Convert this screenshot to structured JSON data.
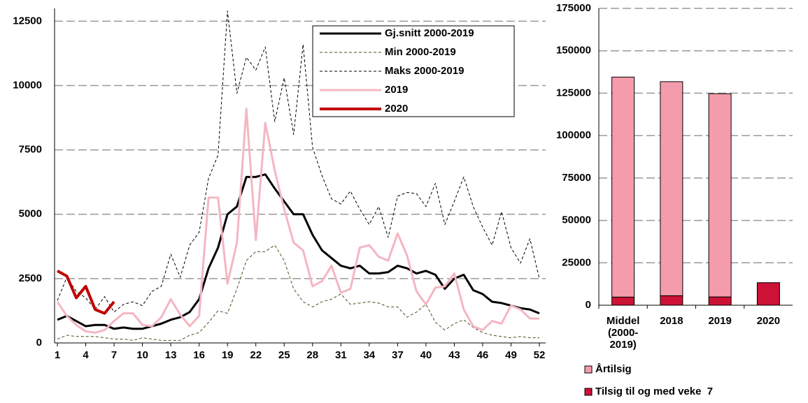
{
  "chart_data": [
    {
      "type": "line",
      "x": [
        1,
        2,
        3,
        4,
        5,
        6,
        7,
        8,
        9,
        10,
        11,
        12,
        13,
        14,
        15,
        16,
        17,
        18,
        19,
        20,
        21,
        22,
        23,
        24,
        25,
        26,
        27,
        28,
        29,
        30,
        31,
        32,
        33,
        34,
        35,
        36,
        37,
        38,
        39,
        40,
        41,
        42,
        43,
        44,
        45,
        46,
        47,
        48,
        49,
        50,
        51,
        52
      ],
      "xlim": [
        1,
        52
      ],
      "xticks": [
        1,
        4,
        7,
        10,
        13,
        16,
        19,
        22,
        25,
        28,
        31,
        34,
        37,
        40,
        43,
        46,
        49,
        52
      ],
      "ylim": [
        0,
        13000
      ],
      "yticks": [
        0,
        2500,
        5000,
        7500,
        10000,
        12500
      ],
      "grid": true,
      "legend": "upper right",
      "series": [
        {
          "name": "Gj.snitt 2000-2019",
          "color": "#000000",
          "line_width": 3,
          "dash": false,
          "values": [
            900,
            1050,
            850,
            650,
            700,
            700,
            550,
            600,
            550,
            550,
            650,
            750,
            900,
            1000,
            1200,
            1700,
            2900,
            3700,
            5000,
            5300,
            6450,
            6450,
            6550,
            6000,
            5500,
            5000,
            5000,
            4200,
            3600,
            3300,
            3000,
            2900,
            3000,
            2700,
            2700,
            2750,
            3000,
            2900,
            2700,
            2800,
            2650,
            2100,
            2500,
            2650,
            2050,
            1900,
            1600,
            1550,
            1450,
            1350,
            1300,
            1150
          ]
        },
        {
          "name": "Min 2000-2019",
          "color": "#4d4d1a",
          "line_width": 1,
          "dash": true,
          "values": [
            150,
            300,
            250,
            250,
            250,
            200,
            150,
            150,
            100,
            200,
            150,
            100,
            100,
            100,
            300,
            400,
            800,
            1250,
            1150,
            2100,
            3200,
            3550,
            3550,
            3800,
            3200,
            2100,
            1600,
            1400,
            1600,
            1700,
            1900,
            1500,
            1550,
            1600,
            1550,
            1400,
            1400,
            1000,
            1200,
            1500,
            800,
            500,
            750,
            900,
            600,
            400,
            300,
            250,
            200,
            250,
            200,
            200
          ]
        },
        {
          "name": "Maks 2000-2019",
          "color": "#000000",
          "line_width": 1,
          "dash": true,
          "values": [
            1650,
            2550,
            2000,
            1750,
            1300,
            1800,
            1200,
            1500,
            1600,
            1450,
            2000,
            2200,
            3450,
            2550,
            3800,
            4300,
            6400,
            7300,
            12900,
            9700,
            11100,
            10600,
            11500,
            8600,
            10300,
            8100,
            11600,
            7600,
            6500,
            5600,
            5400,
            5900,
            5200,
            4600,
            5300,
            4100,
            5700,
            5850,
            5800,
            5300,
            6200,
            4600,
            5500,
            6450,
            5300,
            4500,
            3800,
            5100,
            3700,
            3100,
            4050,
            2500
          ]
        },
        {
          "name": "2019",
          "color": "#f4b6c2",
          "line_width": 3,
          "dash": false,
          "values": [
            1600,
            1050,
            700,
            450,
            400,
            500,
            850,
            1150,
            1150,
            700,
            650,
            1000,
            1700,
            1100,
            650,
            1050,
            5650,
            5650,
            2300,
            3900,
            9100,
            4000,
            8550,
            6700,
            5200,
            3900,
            3600,
            2200,
            2400,
            3000,
            1950,
            2100,
            3700,
            3800,
            3350,
            3200,
            4250,
            3400,
            2000,
            1500,
            2150,
            2200,
            2700,
            1300,
            650,
            500,
            850,
            750,
            1450,
            1300,
            950,
            950
          ]
        },
        {
          "name": "2020",
          "color": "#c00000",
          "line_width": 4,
          "dash": false,
          "values": [
            2800,
            2600,
            1750,
            2200,
            1300,
            1150,
            1600,
            null,
            null,
            null,
            null,
            null,
            null,
            null,
            null,
            null,
            null,
            null,
            null,
            null,
            null,
            null,
            null,
            null,
            null,
            null,
            null,
            null,
            null,
            null,
            null,
            null,
            null,
            null,
            null,
            null,
            null,
            null,
            null,
            null,
            null,
            null,
            null,
            null,
            null,
            null,
            null,
            null,
            null,
            null,
            null,
            null
          ]
        }
      ]
    },
    {
      "type": "bar",
      "stacked": true,
      "categories": [
        "Middel\n(2000-\n2019)",
        "2018",
        "2019",
        "2020"
      ],
      "ylim": [
        0,
        175000
      ],
      "yticks": [
        0,
        25000,
        50000,
        75000,
        100000,
        125000,
        150000,
        175000
      ],
      "grid": true,
      "legend": "bottom",
      "series": [
        {
          "name": "Årtilsig",
          "color": "#f49cab",
          "values": [
            129700,
            126200,
            119800,
            null
          ]
        },
        {
          "name": "Tilsig til og med veke  7",
          "color": "#cc1236",
          "values": [
            4800,
            5600,
            4900,
            13300
          ]
        }
      ]
    }
  ]
}
